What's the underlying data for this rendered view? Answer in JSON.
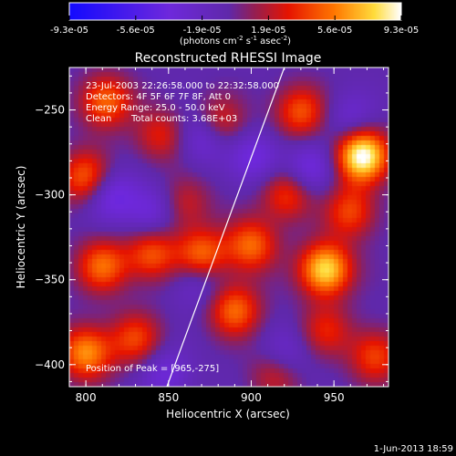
{
  "colorbar": {
    "ticks": [
      "-9.3e-05",
      "-5.6e-05",
      "-1.9e-05",
      "1.9e-05",
      "5.6e-05",
      "9.3e-05"
    ],
    "unit_prefix": "(photons cm",
    "unit_exp1": "-2",
    "unit_mid1": " s",
    "unit_exp2": "-1",
    "unit_mid2": " asec",
    "unit_exp3": "-2",
    "unit_suffix": ")"
  },
  "chart_data": {
    "type": "heatmap",
    "title": "Reconstructed RHESSI Image",
    "xlabel": "Heliocentric X (arcsec)",
    "ylabel": "Heliocentric Y (arcsec)",
    "xlim": [
      790,
      983
    ],
    "ylim": [
      -413,
      -225
    ],
    "xticks": [
      800,
      850,
      900,
      950
    ],
    "yticks": [
      -250,
      -300,
      -350,
      -400
    ],
    "xtick_labels": [
      "800",
      "850",
      "900",
      "950"
    ],
    "ytick_labels": [
      "−250",
      "−300",
      "−350",
      "−400"
    ],
    "value_range": [
      -9.3e-05,
      9.3e-05
    ],
    "limb_line": [
      [
        849,
        -413
      ],
      [
        920,
        -225
      ]
    ],
    "peak": [
      965,
      -275
    ],
    "bright_sources": [
      {
        "x": 967,
        "y": -277,
        "amp": 1.0
      },
      {
        "x": 945,
        "y": -344,
        "amp": 0.85
      },
      {
        "x": 812,
        "y": -245,
        "amp": 0.55
      },
      {
        "x": 930,
        "y": -251,
        "amp": 0.5
      },
      {
        "x": 880,
        "y": -258,
        "amp": 0.45
      },
      {
        "x": 800,
        "y": -290,
        "amp": 0.55
      },
      {
        "x": 870,
        "y": -336,
        "amp": 0.6
      },
      {
        "x": 900,
        "y": -330,
        "amp": 0.55
      },
      {
        "x": 840,
        "y": -335,
        "amp": 0.5
      },
      {
        "x": 810,
        "y": -342,
        "amp": 0.55
      },
      {
        "x": 890,
        "y": -368,
        "amp": 0.55
      },
      {
        "x": 800,
        "y": -393,
        "amp": 0.65
      },
      {
        "x": 830,
        "y": -385,
        "amp": 0.45
      },
      {
        "x": 960,
        "y": -310,
        "amp": 0.45
      },
      {
        "x": 922,
        "y": -300,
        "amp": 0.45
      },
      {
        "x": 975,
        "y": -395,
        "amp": 0.45
      },
      {
        "x": 860,
        "y": -305,
        "amp": 0.3
      },
      {
        "x": 945,
        "y": -380,
        "amp": 0.35
      },
      {
        "x": 845,
        "y": -265,
        "amp": 0.35
      },
      {
        "x": 915,
        "y": -405,
        "amp": 0.35
      }
    ],
    "dark_sources": [
      {
        "x": 872,
        "y": -265,
        "amp": 0.6
      },
      {
        "x": 815,
        "y": -300,
        "amp": 0.55
      },
      {
        "x": 902,
        "y": -278,
        "amp": 0.45
      },
      {
        "x": 935,
        "y": -285,
        "amp": 0.5
      },
      {
        "x": 840,
        "y": -310,
        "amp": 0.45
      },
      {
        "x": 868,
        "y": -350,
        "amp": 0.4
      },
      {
        "x": 848,
        "y": -405,
        "amp": 0.4
      },
      {
        "x": 920,
        "y": -395,
        "amp": 0.4
      },
      {
        "x": 960,
        "y": -255,
        "amp": 0.35
      }
    ]
  },
  "annotations": {
    "time_range": "23-Jul-2003 22:26:58.000 to 22:32:58.000",
    "detectors": "Detectors: 4F 5F 6F 7F 8F, Att 0",
    "energy": "Energy Range: 25.0 - 50.0 keV",
    "method": "Clean",
    "counts": "Total counts: 3.68E+03",
    "peak": "Position of Peak = [965,-275]"
  },
  "footer": {
    "timestamp": "1-Jun-2013 18:59"
  }
}
